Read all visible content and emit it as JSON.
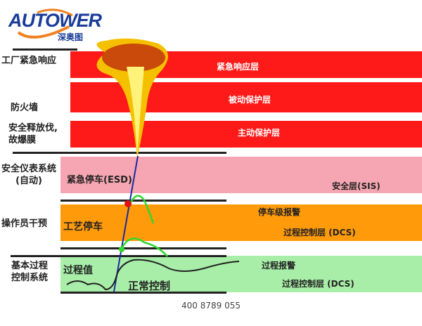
{
  "logo": {
    "brand": "AUTOWER",
    "cn": "深奥图"
  },
  "left_labels": [
    "工厂紧急响应",
    "防火墙",
    "安全释放伐,\n故爆膜",
    "安全仪表系统\n(自动)",
    "操作员干预",
    "基本过程\n控制系统"
  ],
  "bands": {
    "red1": "紧急响应层",
    "red2": "被动保护层",
    "red3": "主动保护层",
    "pink_left": "紧急停车(ESD)",
    "pink_right": "安全层(SIS)",
    "orange_left": "工艺停车",
    "orange_r1": "停车级报警",
    "orange_r2": "过程控制层 (DCS)",
    "green_left": "过程值",
    "green_mid": "正常控制",
    "green_r1": "过程报警",
    "green_r2": "过程控制层 (DCS)"
  },
  "colors": {
    "red": "#ff1a1a",
    "pink": "#f6a6b2",
    "orange": "#ff9a0a",
    "green": "#a8eea8",
    "brand": "#1a3c9a"
  },
  "footer": "400 8789 055"
}
